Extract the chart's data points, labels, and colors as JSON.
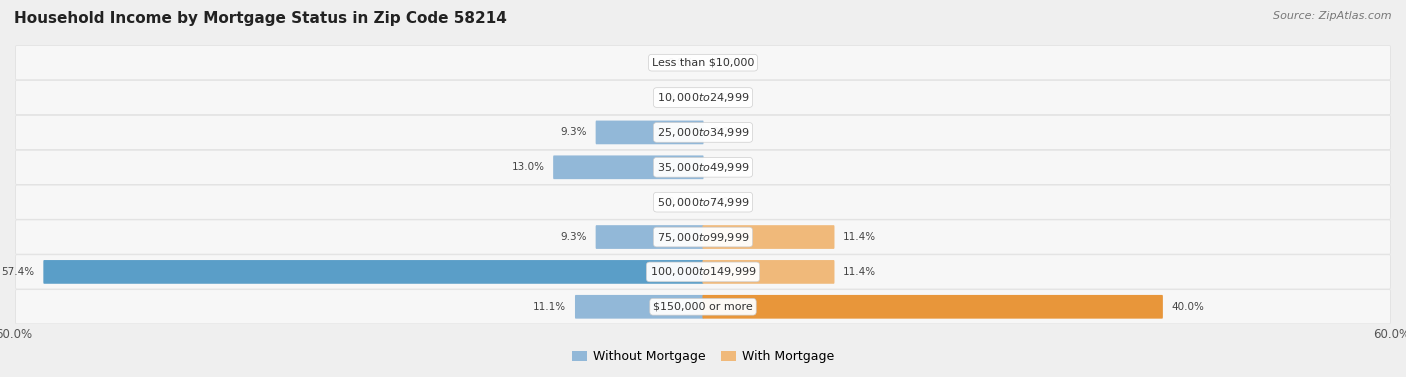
{
  "title": "Household Income by Mortgage Status in Zip Code 58214",
  "source": "Source: ZipAtlas.com",
  "categories": [
    "Less than $10,000",
    "$10,000 to $24,999",
    "$25,000 to $34,999",
    "$35,000 to $49,999",
    "$50,000 to $74,999",
    "$75,000 to $99,999",
    "$100,000 to $149,999",
    "$150,000 or more"
  ],
  "without_mortgage": [
    0.0,
    0.0,
    9.3,
    13.0,
    0.0,
    9.3,
    57.4,
    11.1
  ],
  "with_mortgage": [
    0.0,
    0.0,
    0.0,
    0.0,
    0.0,
    11.4,
    11.4,
    40.0
  ],
  "color_without": "#92B8D8",
  "color_without_strong": "#5A9EC8",
  "color_with": "#F0B97A",
  "color_with_strong": "#E8963A",
  "xlim": 60.0,
  "bg_color": "#EFEFEF",
  "row_bg_light": "#F5F5F5",
  "row_bg_dark": "#EAEAEA",
  "legend_without": "Without Mortgage",
  "legend_with": "With Mortgage",
  "axis_label_left": "60.0%",
  "axis_label_right": "60.0%"
}
